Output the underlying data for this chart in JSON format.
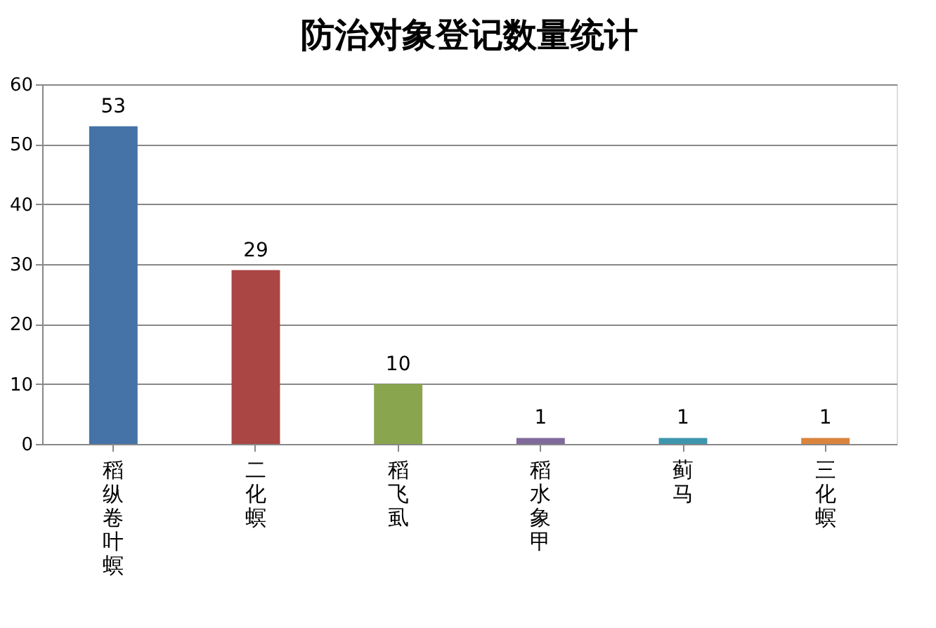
{
  "chart_data": {
    "type": "bar",
    "title": "防治对象登记数量统计",
    "categories": [
      "稻纵卷叶螟",
      "二化螟",
      "稻飞虱",
      "稻水象甲",
      "蓟马",
      "三化螟"
    ],
    "values": [
      53,
      29,
      10,
      1,
      1,
      1
    ],
    "colors": [
      "#4572a7",
      "#aa4643",
      "#89a54e",
      "#80699b",
      "#3d96ae",
      "#db843d"
    ],
    "ylim": [
      0,
      60
    ],
    "yticks": [
      0,
      10,
      20,
      30,
      40,
      50,
      60
    ],
    "grid": "y",
    "data_labels": true,
    "legend": false
  }
}
